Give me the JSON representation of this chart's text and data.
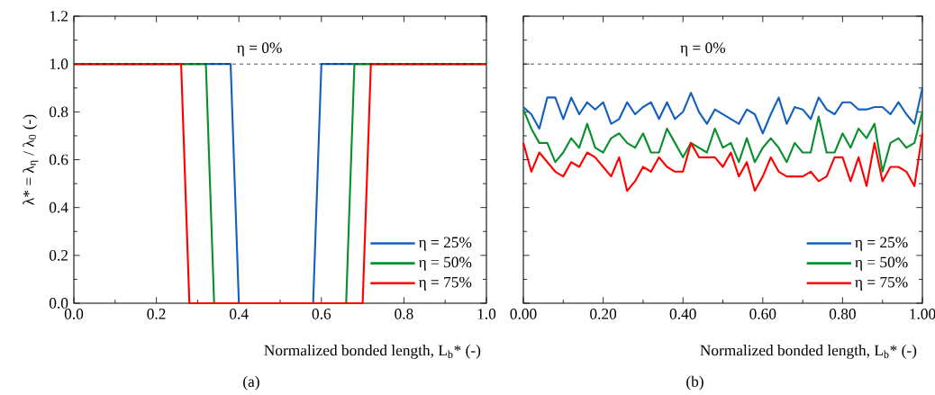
{
  "chart_data": [
    {
      "type": "line",
      "xlabel": "Normalized bonded length, L$_{b}$* (-)",
      "ylabel": "λ* = λ$_{η}$ / λ$_{0}$ (-)",
      "xlim": [
        0,
        1
      ],
      "ylim": [
        0,
        1.2
      ],
      "xticks": [
        {
          "value": 0,
          "label": "0.0"
        },
        {
          "value": 0.2,
          "label": "0.2"
        },
        {
          "value": 0.4,
          "label": "0.4"
        },
        {
          "value": 0.6,
          "label": "0.6"
        },
        {
          "value": 0.8,
          "label": "0.8"
        },
        {
          "value": 1,
          "label": "1.0"
        }
      ],
      "yticks": [
        {
          "value": 0,
          "label": "0.0"
        },
        {
          "value": 0.2,
          "label": "0.2"
        },
        {
          "value": 0.4,
          "label": "0.4"
        },
        {
          "value": 0.6,
          "label": "0.6"
        },
        {
          "value": 0.8,
          "label": "0.8"
        },
        {
          "value": 1,
          "label": "1.0"
        },
        {
          "value": 1.2,
          "label": "1.2"
        }
      ],
      "legend": "bottom right",
      "ref_lines": [
        {
          "axis": "y",
          "value": 1,
          "color": "#000000",
          "line_style": "dashed"
        }
      ],
      "annotations": [
        "η = 0%",
        "(a)"
      ],
      "series": [
        {
          "name": "η = 25%",
          "color": "#1560bd",
          "x": [
            0,
            0.38,
            0.4,
            0.58,
            0.6,
            1
          ],
          "values": [
            1,
            1,
            0,
            0,
            1,
            1
          ]
        },
        {
          "name": "η = 50%",
          "color": "#0a8f2e",
          "x": [
            0,
            0.32,
            0.34,
            0.66,
            0.68,
            1
          ],
          "values": [
            1,
            1,
            0,
            0,
            1,
            1
          ]
        },
        {
          "name": "η = 75%",
          "color": "#ff0000",
          "x": [
            0,
            0.26,
            0.28,
            0.7,
            0.72,
            1
          ],
          "values": [
            1,
            1,
            0,
            0,
            1,
            1
          ]
        }
      ]
    },
    {
      "type": "line",
      "xlabel": "Normalized bonded length, L$_{b}$* (-)",
      "xlim": [
        0,
        1
      ],
      "ylim": [
        0,
        1.2
      ],
      "tick_labels": "x",
      "xticks": [
        {
          "value": 0,
          "label": "0.00"
        },
        {
          "value": 0.2,
          "label": "0.20"
        },
        {
          "value": 0.4,
          "label": "0.40"
        },
        {
          "value": 0.6,
          "label": "0.60"
        },
        {
          "value": 0.8,
          "label": "0.80"
        },
        {
          "value": 1,
          "label": "1.00"
        }
      ],
      "yticks": [
        {
          "value": 0,
          "label": null
        },
        {
          "value": 0.2,
          "label": null
        },
        {
          "value": 0.4,
          "label": null
        },
        {
          "value": 0.6,
          "label": null
        },
        {
          "value": 0.8,
          "label": null
        },
        {
          "value": 1,
          "label": null
        },
        {
          "value": 1.2,
          "label": null
        }
      ],
      "legend": "bottom right",
      "ref_lines": [
        {
          "axis": "y",
          "value": 1,
          "color": "#000000",
          "line_style": "dashed"
        }
      ],
      "annotations": [
        "η = 0%",
        "(b)"
      ],
      "x": [
        0,
        0.02,
        0.04,
        0.06,
        0.08,
        0.1,
        0.12,
        0.14,
        0.16,
        0.18,
        0.2,
        0.22,
        0.24,
        0.26,
        0.28,
        0.3,
        0.32,
        0.34,
        0.36,
        0.38,
        0.4,
        0.42,
        0.44,
        0.46,
        0.48,
        0.5,
        0.52,
        0.54,
        0.56,
        0.58,
        0.6,
        0.62,
        0.64,
        0.66,
        0.68,
        0.7,
        0.72,
        0.74,
        0.76,
        0.78,
        0.8,
        0.82,
        0.84,
        0.86,
        0.88,
        0.9,
        0.92,
        0.94,
        0.96,
        0.98,
        1
      ],
      "series": [
        {
          "name": "η = 25%",
          "color": "#1560bd",
          "values": [
            0.82,
            0.79,
            0.73,
            0.86,
            0.86,
            0.77,
            0.86,
            0.79,
            0.84,
            0.81,
            0.84,
            0.75,
            0.77,
            0.84,
            0.79,
            0.82,
            0.84,
            0.77,
            0.84,
            0.77,
            0.8,
            0.88,
            0.8,
            0.75,
            0.81,
            0.79,
            0.77,
            0.75,
            0.81,
            0.79,
            0.71,
            0.79,
            0.86,
            0.75,
            0.82,
            0.81,
            0.77,
            0.86,
            0.81,
            0.79,
            0.84,
            0.84,
            0.81,
            0.81,
            0.82,
            0.82,
            0.79,
            0.84,
            0.79,
            0.75,
            0.9
          ]
        },
        {
          "name": "η = 50%",
          "color": "#0a8f2e",
          "values": [
            0.81,
            0.73,
            0.67,
            0.67,
            0.59,
            0.63,
            0.69,
            0.65,
            0.75,
            0.65,
            0.63,
            0.69,
            0.71,
            0.67,
            0.65,
            0.71,
            0.63,
            0.63,
            0.73,
            0.67,
            0.61,
            0.67,
            0.65,
            0.63,
            0.73,
            0.65,
            0.67,
            0.59,
            0.69,
            0.59,
            0.65,
            0.69,
            0.65,
            0.59,
            0.67,
            0.63,
            0.63,
            0.78,
            0.63,
            0.63,
            0.71,
            0.65,
            0.73,
            0.69,
            0.75,
            0.55,
            0.67,
            0.69,
            0.65,
            0.67,
            0.8
          ]
        },
        {
          "name": "η = 75%",
          "color": "#ff0000",
          "values": [
            0.67,
            0.55,
            0.63,
            0.59,
            0.55,
            0.53,
            0.59,
            0.57,
            0.63,
            0.61,
            0.57,
            0.53,
            0.61,
            0.47,
            0.51,
            0.57,
            0.55,
            0.61,
            0.57,
            0.55,
            0.55,
            0.67,
            0.61,
            0.61,
            0.61,
            0.57,
            0.63,
            0.53,
            0.59,
            0.47,
            0.53,
            0.61,
            0.55,
            0.53,
            0.53,
            0.53,
            0.55,
            0.51,
            0.53,
            0.61,
            0.61,
            0.51,
            0.61,
            0.49,
            0.67,
            0.51,
            0.57,
            0.57,
            0.55,
            0.49,
            0.71
          ]
        }
      ]
    }
  ]
}
